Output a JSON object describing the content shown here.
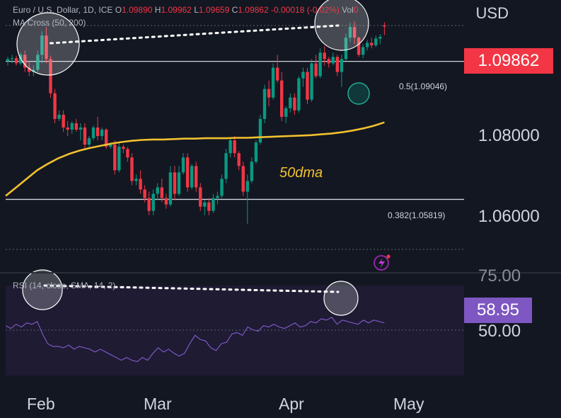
{
  "header": {
    "symbol_text": "Euro / U.S. Dollar, 1D, ICE",
    "ohlc": [
      {
        "k": "O",
        "v": "1.09890"
      },
      {
        "k": "H",
        "v": "1.09962"
      },
      {
        "k": "L",
        "v": "1.09659"
      },
      {
        "k": "C",
        "v": "1.09862"
      },
      {
        "k": "",
        "v": "-0.00018 (-0.02%)"
      },
      {
        "k": "Vol",
        "v": "0"
      }
    ],
    "ma_text": "MA Cross (50, 200)",
    "rsi_text": "RSI (14, close, SMA, 14, 2)",
    "currency": "USD"
  },
  "price_axis": {
    "ticks": [
      "1.08000",
      "1.06000"
    ],
    "last_price": "1.09862",
    "last_price_color": "#f23645"
  },
  "rsi_axis": {
    "ticks": [
      "75.00",
      "50.00"
    ],
    "last_value": "58.95",
    "last_value_color": "#7e57c2"
  },
  "fib_levels": [
    {
      "label": "0.5(1.09046)",
      "value": 1.09046
    },
    {
      "label": "0.382(1.05819)",
      "value": 1.05819
    }
  ],
  "annotations": {
    "ma_label": "50dma"
  },
  "time_axis": {
    "months": [
      "Feb",
      "Mar",
      "Apr",
      "May"
    ]
  },
  "colors": {
    "up": "#089981",
    "down": "#f23645",
    "ma": "#f2c12e",
    "rsi": "#7e57c2",
    "bg": "#131722"
  },
  "chart_data": [
    {
      "type": "candlestick",
      "title": "Euro / U.S. Dollar, 1D, ICE",
      "ylim": [
        1.0465,
        1.1015
      ],
      "grid": false,
      "x_ticks": [
        "Feb",
        "Mar",
        "Apr",
        "May"
      ],
      "candles": [
        [
          1.0905,
          1.0915,
          1.0895,
          1.091
        ],
        [
          1.091,
          1.092,
          1.09,
          1.0912
        ],
        [
          1.0912,
          1.0918,
          1.0895,
          1.09
        ],
        [
          1.09,
          1.0925,
          1.0895,
          1.092
        ],
        [
          1.092,
          1.093,
          1.088,
          1.089
        ],
        [
          1.089,
          1.0905,
          1.087,
          1.088
        ],
        [
          1.088,
          1.0895,
          1.087,
          1.0885
        ],
        [
          1.0885,
          1.093,
          1.088,
          1.092
        ],
        [
          1.092,
          1.0975,
          1.09,
          1.0965
        ],
        [
          1.0965,
          1.0985,
          1.09,
          1.091
        ],
        [
          1.091,
          1.0918,
          1.082,
          1.083
        ],
        [
          1.083,
          1.084,
          1.076,
          1.077
        ],
        [
          1.077,
          1.079,
          1.0765,
          1.078
        ],
        [
          1.078,
          1.079,
          1.074,
          1.075
        ],
        [
          1.075,
          1.0765,
          1.073,
          1.0745
        ],
        [
          1.0745,
          1.0765,
          1.0735,
          1.076
        ],
        [
          1.076,
          1.077,
          1.074,
          1.0745
        ],
        [
          1.0745,
          1.076,
          1.072,
          1.075
        ],
        [
          1.075,
          1.076,
          1.07,
          1.071
        ],
        [
          1.071,
          1.073,
          1.0705,
          1.0725
        ],
        [
          1.0725,
          1.0755,
          1.072,
          1.075
        ],
        [
          1.075,
          1.0775,
          1.072,
          1.073
        ],
        [
          1.073,
          1.075,
          1.072,
          1.0745
        ],
        [
          1.0745,
          1.0748,
          1.07,
          1.0705
        ],
        [
          1.0705,
          1.0715,
          1.07,
          1.071
        ],
        [
          1.071,
          1.072,
          1.064,
          1.065
        ],
        [
          1.065,
          1.0715,
          1.0645,
          1.0705
        ],
        [
          1.0705,
          1.071,
          1.069,
          1.07
        ],
        [
          1.07,
          1.0705,
          1.067,
          1.068
        ],
        [
          1.068,
          1.069,
          1.0615,
          1.0625
        ],
        [
          1.0625,
          1.064,
          1.0615,
          1.063
        ],
        [
          1.063,
          1.065,
          1.0595,
          1.0605
        ],
        [
          1.0605,
          1.0615,
          1.0575,
          1.0585
        ],
        [
          1.0585,
          1.06,
          1.0545,
          1.0555
        ],
        [
          1.0555,
          1.0605,
          1.0545,
          1.0595
        ],
        [
          1.0595,
          1.062,
          1.058,
          1.061
        ],
        [
          1.061,
          1.063,
          1.0575,
          1.0585
        ],
        [
          1.0585,
          1.0595,
          1.056,
          1.057
        ],
        [
          1.057,
          1.066,
          1.0565,
          1.0645
        ],
        [
          1.0645,
          1.066,
          1.058,
          1.0595
        ],
        [
          1.0595,
          1.066,
          1.059,
          1.0645
        ],
        [
          1.0645,
          1.069,
          1.064,
          1.068
        ],
        [
          1.068,
          1.069,
          1.06,
          1.061
        ],
        [
          1.061,
          1.0665,
          1.0605,
          1.066
        ],
        [
          1.066,
          1.067,
          1.06,
          1.061
        ],
        [
          1.061,
          1.062,
          1.0555,
          1.0565
        ],
        [
          1.0565,
          1.058,
          1.0545,
          1.0575
        ],
        [
          1.0575,
          1.0585,
          1.0545,
          1.0555
        ],
        [
          1.0555,
          1.0595,
          1.055,
          1.0585
        ],
        [
          1.0585,
          1.06,
          1.057,
          1.059
        ],
        [
          1.059,
          1.064,
          1.0585,
          1.063
        ],
        [
          1.063,
          1.07,
          1.062,
          1.069
        ],
        [
          1.069,
          1.0725,
          1.068,
          1.072
        ],
        [
          1.072,
          1.073,
          1.068,
          1.069
        ],
        [
          1.069,
          1.0695,
          1.065,
          1.066
        ],
        [
          1.066,
          1.067,
          1.059,
          1.06
        ],
        [
          1.06,
          1.064,
          1.0525,
          1.0625
        ],
        [
          1.0625,
          1.068,
          1.062,
          1.067
        ],
        [
          1.067,
          1.072,
          1.0665,
          1.0715
        ],
        [
          1.0715,
          1.078,
          1.071,
          1.077
        ],
        [
          1.077,
          1.085,
          1.076,
          1.084
        ],
        [
          1.084,
          1.086,
          1.08,
          1.082
        ],
        [
          1.082,
          1.09,
          1.0815,
          1.089
        ],
        [
          1.089,
          1.092,
          1.0855,
          1.086
        ],
        [
          1.086,
          1.088,
          1.0765,
          1.0775
        ],
        [
          1.0775,
          1.08,
          1.076,
          1.0795
        ],
        [
          1.0795,
          1.083,
          1.0785,
          1.082
        ],
        [
          1.082,
          1.083,
          1.078,
          1.079
        ],
        [
          1.079,
          1.087,
          1.0785,
          1.0865
        ],
        [
          1.0865,
          1.089,
          1.0845,
          1.088
        ],
        [
          1.088,
          1.089,
          1.0805,
          1.0815
        ],
        [
          1.0815,
          1.091,
          1.081,
          1.09
        ],
        [
          1.09,
          1.092,
          1.0865,
          1.087
        ],
        [
          1.087,
          1.0935,
          1.0865,
          1.0925
        ],
        [
          1.0925,
          1.094,
          1.0895,
          1.091
        ],
        [
          1.091,
          1.0915,
          1.089,
          1.09
        ],
        [
          1.09,
          1.0925,
          1.0895,
          1.0915
        ],
        [
          1.0915,
          1.092,
          1.087,
          1.088
        ],
        [
          1.088,
          1.092,
          1.0845,
          1.091
        ],
        [
          1.091,
          1.097,
          1.0905,
          1.096
        ],
        [
          1.096,
          1.0995,
          1.095,
          1.0985
        ],
        [
          1.0985,
          1.0998,
          1.0945,
          1.096
        ],
        [
          1.096,
          1.0962,
          1.0915,
          1.092
        ],
        [
          1.092,
          1.0945,
          1.0912,
          1.0938
        ],
        [
          1.0938,
          1.0955,
          1.093,
          1.0948
        ],
        [
          1.0948,
          1.096,
          1.0935,
          1.0942
        ],
        [
          1.0942,
          1.0965,
          1.0938,
          1.0958
        ],
        [
          1.0958,
          1.0968,
          1.0945,
          1.0962
        ],
        [
          1.0989,
          1.0996,
          1.0966,
          1.0986
        ]
      ],
      "ma50": [
        1.059,
        1.061,
        1.063,
        1.065,
        1.0665,
        1.0678,
        1.0688,
        1.0696,
        1.0702,
        1.0707,
        1.0712,
        1.0716,
        1.0719,
        1.0721,
        1.0722,
        1.0722,
        1.0723,
        1.0724,
        1.0724,
        1.0725,
        1.0725,
        1.0725,
        1.0726,
        1.0726,
        1.0727,
        1.0728,
        1.0729,
        1.073,
        1.0731,
        1.0732,
        1.0734,
        1.0736,
        1.0739,
        1.0743,
        1.0748,
        1.0754,
        1.0762
      ],
      "rsi": [
        56,
        54,
        57,
        55,
        58,
        57,
        59,
        50,
        43,
        41,
        41,
        40,
        42,
        39,
        41,
        40,
        39,
        37,
        39,
        37,
        35,
        33,
        31,
        33,
        31,
        30,
        33,
        31,
        36,
        40,
        37,
        39,
        36,
        34,
        36,
        43,
        49,
        46,
        45,
        40,
        38,
        43,
        44,
        50,
        51,
        49,
        55,
        53,
        52,
        56,
        55,
        57,
        55,
        54,
        56,
        58,
        55,
        56,
        59,
        58,
        61,
        60,
        62,
        57,
        60,
        59,
        58,
        57,
        60,
        58,
        60,
        59,
        58
      ]
    }
  ]
}
